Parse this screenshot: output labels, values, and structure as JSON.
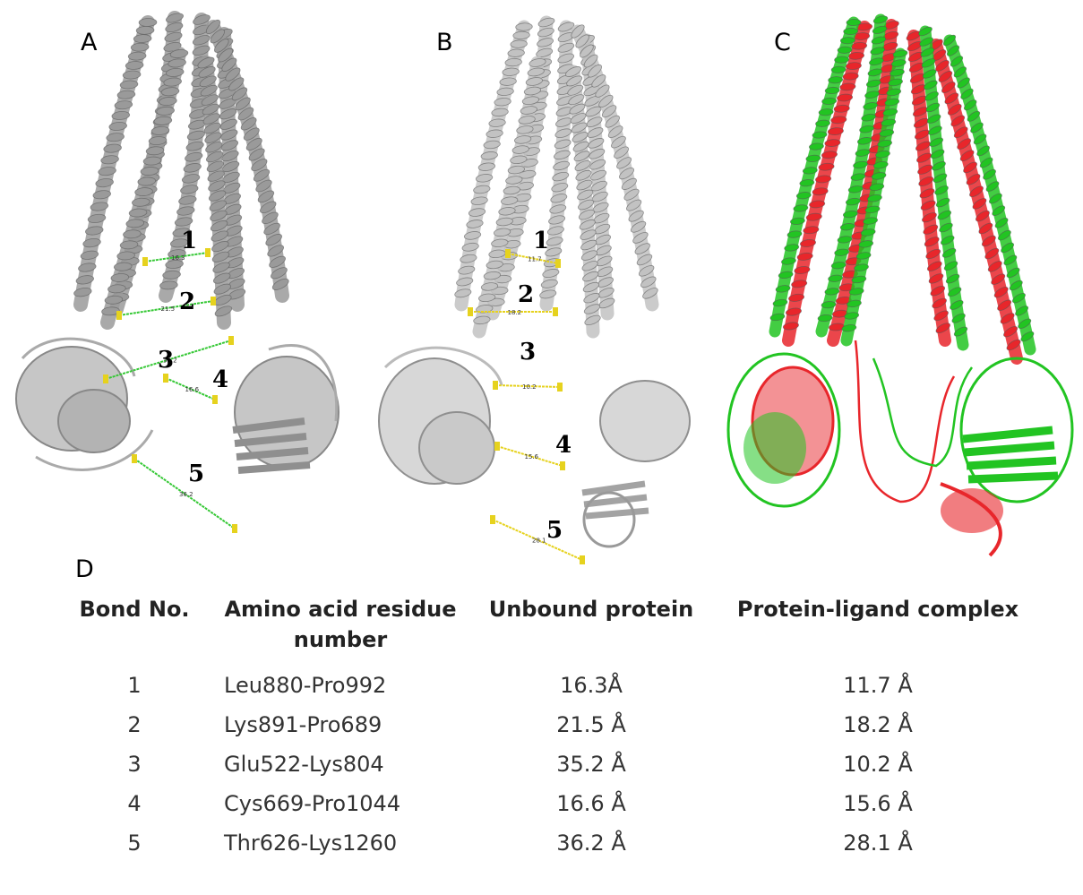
{
  "panels": [
    {
      "label": "A",
      "bond_labels": [
        "1",
        "2",
        "3",
        "4",
        "5"
      ],
      "distance_labels": [
        "16.3",
        "21.5",
        "35.2",
        "16.6",
        "36.2"
      ]
    },
    {
      "label": "B",
      "bond_labels": [
        "1",
        "2",
        "3",
        "4",
        "5"
      ],
      "distance_labels": [
        "11.7",
        "18.2",
        "10.2",
        "15.6",
        "28.1"
      ]
    },
    {
      "label": "C"
    }
  ],
  "colors": {
    "protein_gray": "#9a9a9a",
    "bond_green": "#35c835",
    "bond_yellow": "#e6d21e",
    "overlay_red": "#e8262b",
    "overlay_green": "#22c422"
  },
  "table": {
    "label": "D",
    "headers": [
      "Bond No.",
      "Amino acid residue number",
      "Unbound protein",
      "Protein-ligand complex"
    ],
    "rows": [
      [
        "1",
        "Leu880-Pro992",
        "16.3Å",
        "11.7 Å"
      ],
      [
        "2",
        "Lys891-Pro689",
        "21.5 Å",
        "18.2 Å"
      ],
      [
        "3",
        "Glu522-Lys804",
        "35.2 Å",
        "10.2 Å"
      ],
      [
        "4",
        "Cys669-Pro1044",
        "16.6 Å",
        "15.6 Å"
      ],
      [
        "5",
        "Thr626-Lys1260",
        "36.2 Å",
        "28.1 Å"
      ]
    ]
  }
}
